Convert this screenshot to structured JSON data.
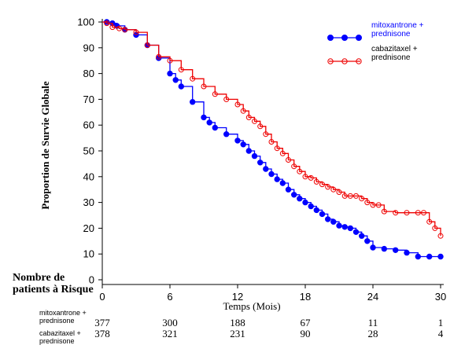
{
  "chart_data": {
    "type": "line",
    "title": "",
    "xlabel": "Temps (Mois)",
    "ylabel": "Proportion de Survie Globale",
    "xlim": [
      0,
      30
    ],
    "ylim": [
      0,
      100
    ],
    "x_ticks": [
      0,
      6,
      12,
      18,
      24,
      30
    ],
    "y_ticks": [
      0,
      10,
      20,
      30,
      40,
      50,
      60,
      70,
      80,
      90,
      100
    ],
    "legend_position": "top-right",
    "series": [
      {
        "name": "mitoxantrone + prednisone",
        "color": "#0000ff",
        "marker": "filled-circle",
        "x": [
          0,
          0.4,
          0.9,
          1.3,
          2,
          3,
          4,
          5,
          6,
          6.5,
          7,
          8,
          9,
          9.5,
          10,
          11,
          12,
          12.5,
          13,
          13.5,
          14,
          14.5,
          15,
          15.5,
          16,
          16.5,
          17,
          17.5,
          18,
          18.5,
          19,
          19.5,
          20,
          20.5,
          21,
          21.5,
          22,
          22.5,
          23,
          23.5,
          24,
          25,
          26,
          27,
          28,
          29,
          30
        ],
        "y": [
          100,
          100,
          99.5,
          98.5,
          97,
          95,
          91,
          86,
          80,
          77.5,
          75,
          69,
          63,
          61,
          59,
          56.5,
          54,
          52.5,
          50,
          48,
          45.5,
          43,
          41,
          39,
          37.5,
          35,
          33,
          31.5,
          30,
          28.5,
          27,
          25.5,
          23.5,
          22.5,
          21,
          20.5,
          20,
          18.5,
          17,
          15,
          12.5,
          12,
          11.5,
          10.5,
          9,
          9,
          9
        ]
      },
      {
        "name": "cabazitaxel + prednisone",
        "color": "#ee0000",
        "marker": "open-circle",
        "x": [
          0,
          0.4,
          0.9,
          1.5,
          2,
          3,
          4,
          5,
          6,
          7,
          8,
          9,
          10,
          11,
          12,
          12.5,
          13,
          13.5,
          14,
          14.5,
          15,
          15.5,
          16,
          16.5,
          17,
          17.5,
          18,
          18.5,
          19,
          19.5,
          20,
          20.5,
          21,
          21.5,
          22,
          22.5,
          23,
          23.5,
          24,
          24.5,
          25,
          26,
          27,
          28,
          28.5,
          29,
          29.5,
          30
        ],
        "y": [
          100,
          99.5,
          98,
          97.5,
          97,
          96,
          91,
          86.5,
          85,
          81.5,
          78,
          75,
          72,
          70,
          68,
          65.5,
          63,
          61.5,
          59.5,
          56.5,
          53.5,
          51,
          49,
          46.5,
          44,
          42,
          40,
          39.5,
          38,
          37,
          36,
          35,
          34,
          32.5,
          32.5,
          32.5,
          31.5,
          30,
          29,
          29,
          26.5,
          26,
          26,
          26,
          26,
          22.5,
          20,
          17
        ]
      }
    ],
    "at_risk_table": {
      "title": "Nombre de patients à Risque",
      "rows": [
        {
          "label": "mitoxantrone + prednisone",
          "values": [
            "377",
            "300",
            "188",
            "67",
            "11",
            "1"
          ]
        },
        {
          "label": "cabazitaxel + prednisone",
          "values": [
            "378",
            "321",
            "231",
            "90",
            "28",
            "4"
          ]
        }
      ]
    }
  }
}
